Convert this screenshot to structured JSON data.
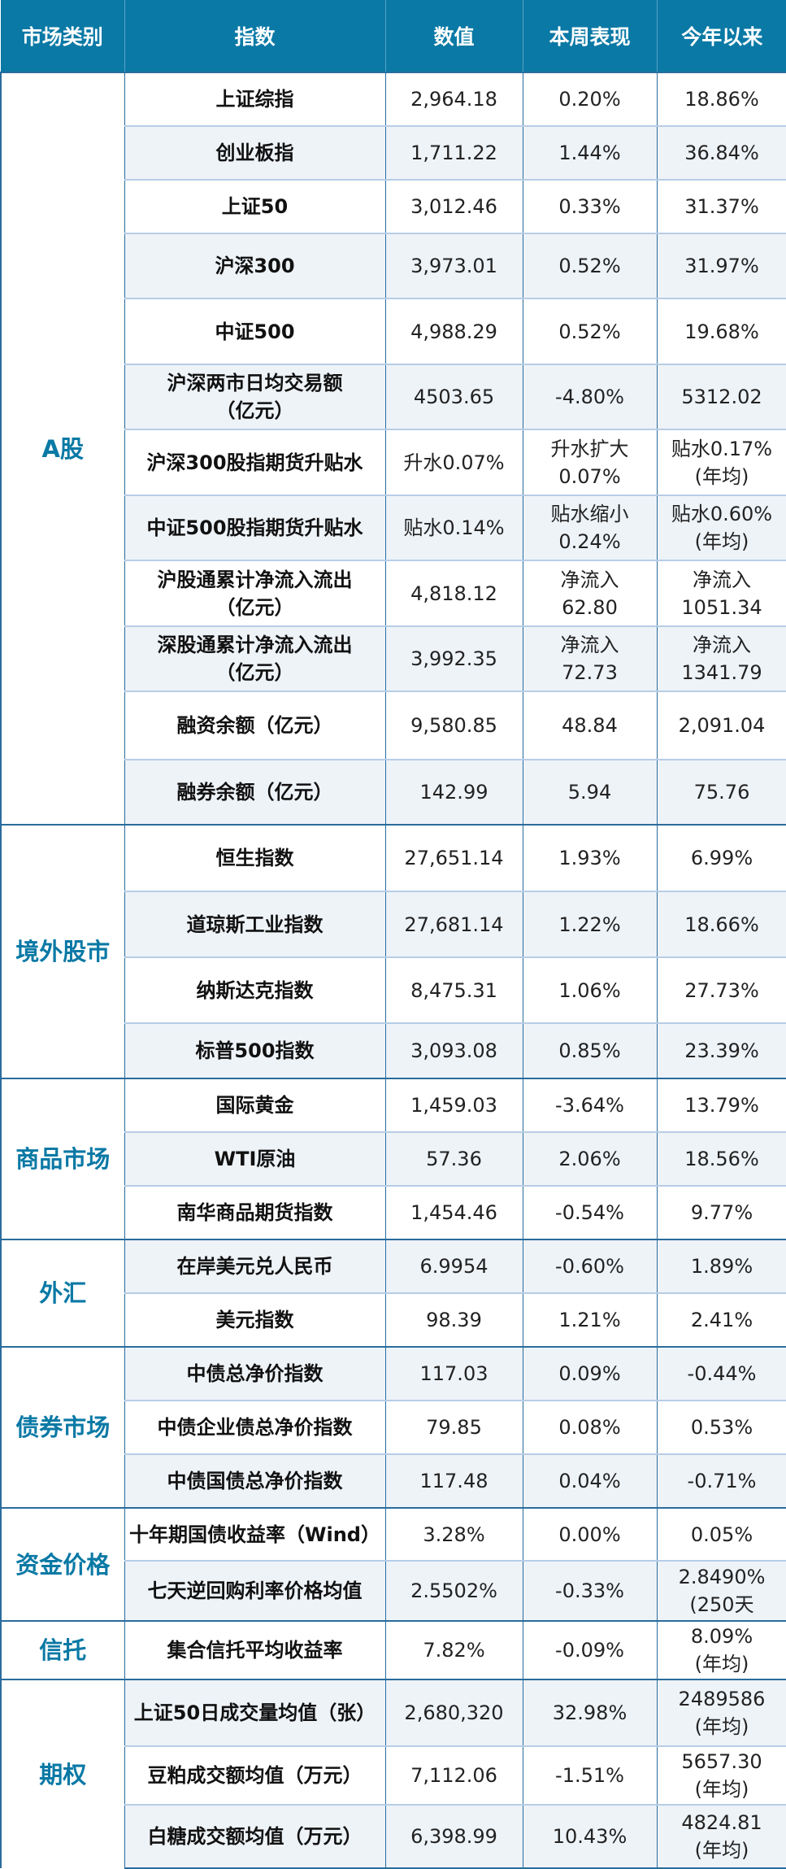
{
  "colors": {
    "header_bg": "#0a79a5",
    "category_text": "#0a79a5",
    "alt_row_bg": "#eef3f8",
    "border": "#2a6c9c"
  },
  "headers": [
    "市场类别",
    "指数",
    "数值",
    "本周表现",
    "今年以来"
  ],
  "groups": [
    {
      "category": "A股",
      "rows": [
        [
          "上证综指",
          "2,964.18",
          "0.20%",
          "18.86%"
        ],
        [
          "创业板指",
          "1,711.22",
          "1.44%",
          "36.84%"
        ],
        [
          "上证50",
          "3,012.46",
          "0.33%",
          "31.37%"
        ],
        [
          "沪深300",
          "3,973.01",
          "0.52%",
          "31.97%"
        ],
        [
          "中证500",
          "4,988.29",
          "0.52%",
          "19.68%"
        ],
        [
          "沪深两市日均交易额\n（亿元）",
          "4503.65",
          "-4.80%",
          "5312.02"
        ],
        [
          "沪深300股指期货升贴水",
          "升水0.07%",
          "升水扩大\n0.07%",
          "贴水0.17%\n(年均)"
        ],
        [
          "中证500股指期货升贴水",
          "贴水0.14%",
          "贴水缩小\n0.24%",
          "贴水0.60%\n(年均)"
        ],
        [
          "沪股通累计净流入流出\n（亿元）",
          "4,818.12",
          "净流入\n62.80",
          "净流入\n1051.34"
        ],
        [
          "深股通累计净流入流出\n（亿元）",
          "3,992.35",
          "净流入\n72.73",
          "净流入\n1341.79"
        ],
        [
          "融资余额（亿元）",
          "9,580.85",
          "48.84",
          "2,091.04"
        ],
        [
          "融券余额（亿元）",
          "142.99",
          "5.94",
          "75.76"
        ]
      ]
    },
    {
      "category": "境外股市",
      "rows": [
        [
          "恒生指数",
          "27,651.14",
          "1.93%",
          "6.99%"
        ],
        [
          "道琼斯工业指数",
          "27,681.14",
          "1.22%",
          "18.66%"
        ],
        [
          "纳斯达克指数",
          "8,475.31",
          "1.06%",
          "27.73%"
        ],
        [
          "标普500指数",
          "3,093.08",
          "0.85%",
          "23.39%"
        ]
      ]
    },
    {
      "category": "商品市场",
      "rows": [
        [
          "国际黄金",
          "1,459.03",
          "-3.64%",
          "13.79%"
        ],
        [
          "WTI原油",
          "57.36",
          "2.06%",
          "18.56%"
        ],
        [
          "南华商品期货指数",
          "1,454.46",
          "-0.54%",
          "9.77%"
        ]
      ]
    },
    {
      "category": "外汇",
      "rows": [
        [
          "在岸美元兑人民币",
          "6.9954",
          "-0.60%",
          "1.89%"
        ],
        [
          "美元指数",
          "98.39",
          "1.21%",
          "2.41%"
        ]
      ]
    },
    {
      "category": "债券市场",
      "rows": [
        [
          "中债总净价指数",
          "117.03",
          "0.09%",
          "-0.44%"
        ],
        [
          "中债企业债总净价指数",
          "79.85",
          "0.08%",
          "0.53%"
        ],
        [
          "中债国债总净价指数",
          "117.48",
          "0.04%",
          "-0.71%"
        ]
      ]
    },
    {
      "category": "资金价格",
      "rows": [
        [
          "十年期国债收益率（Wind）",
          "3.28%",
          "0.00%",
          "0.05%"
        ],
        [
          "七天逆回购利率价格均值",
          "2.5502%",
          "-0.33%",
          "2.8490%\n(250天"
        ]
      ]
    },
    {
      "category": "信托",
      "rows": [
        [
          "集合信托平均收益率",
          "7.82%",
          "-0.09%",
          "8.09%\n(年均)"
        ]
      ]
    },
    {
      "category": "期权",
      "rows": [
        [
          "上证50日成交量均值（张）",
          "2,680,320",
          "32.98%",
          "2489586\n(年均)"
        ],
        [
          "豆粕成交额均值（万元）",
          "7,112.06",
          "-1.51%",
          "5657.30\n(年均)"
        ],
        [
          "白糖成交额均值（万元）",
          "6,398.99",
          "10.43%",
          "4824.81\n(年均)"
        ]
      ]
    }
  ]
}
